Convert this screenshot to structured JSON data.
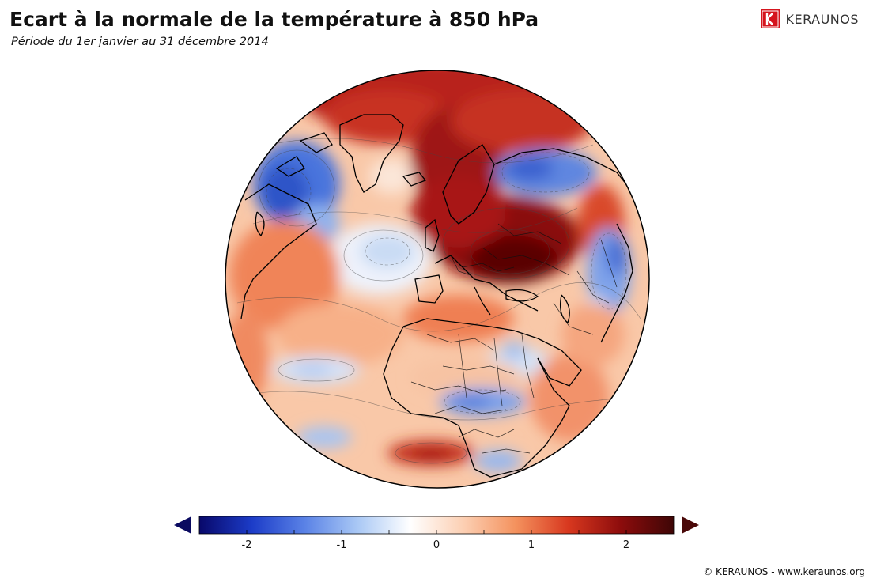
{
  "header": {
    "title": "Ecart à la normale de la température à 850 hPa",
    "subtitle": "Période du 1er janvier au 31 décembre 2014"
  },
  "brand": {
    "name": "KERAUNOS",
    "color": "#d5151e"
  },
  "map": {
    "projection": "orthographic",
    "quantity": "temperature anomaly at 850 hPa",
    "anomaly_regions": [
      {
        "region": "Arctic / northern Russia",
        "sign": "positive",
        "intensity": "strong"
      },
      {
        "region": "Western Russia / Urals",
        "sign": "positive",
        "intensity": "very strong"
      },
      {
        "region": "Eastern Canada / Great Lakes",
        "sign": "negative",
        "intensity": "strong"
      },
      {
        "region": "Central Siberia",
        "sign": "negative",
        "intensity": "moderate"
      },
      {
        "region": "Eastern Asia",
        "sign": "negative",
        "intensity": "moderate"
      },
      {
        "region": "North Atlantic",
        "sign": "negative",
        "intensity": "weak"
      },
      {
        "region": "Sahel / Central Africa",
        "sign": "negative",
        "intensity": "moderate"
      },
      {
        "region": "Middle East",
        "sign": "negative",
        "intensity": "weak"
      },
      {
        "region": "Subtropical Atlantic",
        "sign": "positive",
        "intensity": "moderate"
      },
      {
        "region": "South Atlantic",
        "sign": "positive",
        "intensity": "strong"
      }
    ]
  },
  "legend": {
    "tick_labels": [
      "-2",
      "-1",
      "0",
      "1",
      "2"
    ],
    "range": [
      -2.5,
      2.5
    ],
    "extend": "both",
    "colors": [
      "#08086a",
      "#1c3cc8",
      "#5a82e6",
      "#a9c8f5",
      "#ffffff",
      "#fcd0b4",
      "#f4925e",
      "#d8381f",
      "#8c0c0c",
      "#3e0606"
    ],
    "low_arrow_color": "#0a0a60",
    "high_arrow_color": "#4a0808"
  },
  "footer": {
    "copyright": "© KERAUNOS - www.keraunos.org"
  }
}
